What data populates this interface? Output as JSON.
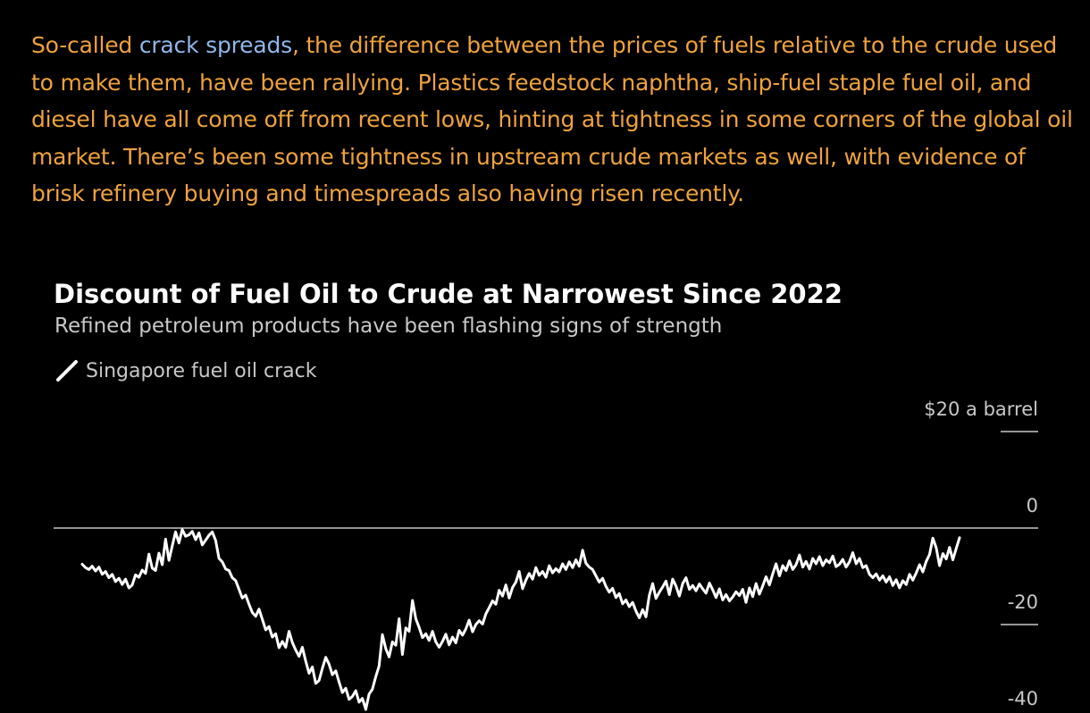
{
  "article": {
    "text_before_link": "So-called ",
    "link_text": "crack spreads",
    "text_after_link": ", the difference between the prices of fuels relative to the crude used to make them, have been rallying. Plastics feedstock naphtha, ship-fuel staple fuel oil, and diesel have all come off from recent lows, hinting at tightness in some corners of the global oil market. There’s been some tightness in upstream crude markets as well, with evidence of brisk refinery buying and timespreads also having risen recently.",
    "text_color": "#f0a23a",
    "link_color": "#8fb8ea"
  },
  "chart_data": {
    "type": "line",
    "title": "Discount of Fuel Oil to Crude at Narrowest Since 2022",
    "subtitle": "Refined petroleum products have been flashing signs of strength",
    "series": [
      {
        "name": "Singapore fuel oil crack",
        "color": "#ffffff",
        "values": [
          -7.5,
          -8.2,
          -8.6,
          -7.9,
          -8.9,
          -8.1,
          -9.6,
          -9.0,
          -10.3,
          -9.6,
          -11.1,
          -10.4,
          -11.7,
          -10.6,
          -12.4,
          -11.8,
          -9.7,
          -10.2,
          -8.7,
          -9.4,
          -5.4,
          -8.3,
          -8.8,
          -5.2,
          -7.6,
          -2.3,
          -6.7,
          -3.7,
          -0.8,
          -3.1,
          -0.3,
          -1.7,
          -1.4,
          -0.7,
          -2.4,
          -1.0,
          -3.5,
          -2.5,
          -1.5,
          -0.8,
          -2.6,
          -6.3,
          -7.0,
          -8.5,
          -8.8,
          -10.3,
          -10.9,
          -12.7,
          -14.5,
          -13.9,
          -15.8,
          -17.5,
          -18.3,
          -16.8,
          -18.9,
          -21.1,
          -20.4,
          -22.6,
          -21.9,
          -24.8,
          -23.5,
          -24.7,
          -21.4,
          -23.7,
          -25.3,
          -26.6,
          -24.7,
          -27.6,
          -30.1,
          -28.8,
          -32.2,
          -31.6,
          -29.1,
          -26.8,
          -28.2,
          -30.4,
          -29.6,
          -31.9,
          -34.1,
          -33.2,
          -35.5,
          -34.9,
          -33.7,
          -36.1,
          -35.3,
          -37.6,
          -34.4,
          -33.4,
          -30.8,
          -28.6,
          -22.1,
          -25.0,
          -26.7,
          -23.6,
          -24.3,
          -18.8,
          -26.2,
          -20.7,
          -21.4,
          -15.0,
          -18.8,
          -20.6,
          -22.7,
          -21.9,
          -23.3,
          -21.4,
          -23.6,
          -24.7,
          -23.5,
          -22.0,
          -24.2,
          -22.6,
          -23.8,
          -21.2,
          -22.2,
          -20.9,
          -19.1,
          -21.5,
          -20.0,
          -19.2,
          -19.9,
          -17.8,
          -16.5,
          -15.1,
          -15.8,
          -12.9,
          -14.1,
          -11.8,
          -14.5,
          -12.3,
          -11.2,
          -9.0,
          -12.6,
          -10.8,
          -9.4,
          -10.6,
          -8.2,
          -9.8,
          -9.0,
          -10.2,
          -7.8,
          -9.3,
          -8.4,
          -9.1,
          -7.4,
          -8.6,
          -7.0,
          -8.2,
          -6.6,
          -7.9,
          -4.6,
          -7.3,
          -8.1,
          -8.6,
          -9.9,
          -11.2,
          -10.4,
          -12.1,
          -13.3,
          -12.5,
          -14.4,
          -13.6,
          -15.7,
          -14.9,
          -16.3,
          -15.4,
          -17.2,
          -18.6,
          -16.9,
          -18.4,
          -13.9,
          -11.5,
          -14.6,
          -13.3,
          -12.2,
          -11.0,
          -13.8,
          -10.6,
          -12.0,
          -14.1,
          -11.5,
          -10.3,
          -12.7,
          -11.9,
          -13.0,
          -11.6,
          -12.6,
          -13.5,
          -11.4,
          -12.8,
          -14.4,
          -12.6,
          -14.9,
          -13.8,
          -15.1,
          -14.3,
          -13.2,
          -14.0,
          -12.7,
          -15.4,
          -12.4,
          -14.2,
          -11.5,
          -13.7,
          -12.0,
          -10.1,
          -11.8,
          -9.5,
          -7.4,
          -9.9,
          -7.8,
          -8.8,
          -6.8,
          -8.6,
          -7.6,
          -5.6,
          -8.1,
          -6.9,
          -8.5,
          -6.3,
          -7.4,
          -5.9,
          -7.8,
          -6.6,
          -7.2,
          -5.8,
          -8.0,
          -7.5,
          -6.5,
          -8.1,
          -7.0,
          -5.1,
          -7.4,
          -6.3,
          -8.2,
          -7.8,
          -9.6,
          -10.3,
          -9.5,
          -10.8,
          -9.9,
          -11.2,
          -10.1,
          -11.9,
          -10.7,
          -12.4,
          -10.9,
          -11.7,
          -9.6,
          -10.8,
          -9.3,
          -7.6,
          -9.1,
          -6.9,
          -5.5,
          -2.1,
          -4.1,
          -7.8,
          -5.3,
          -6.4,
          -4.0,
          -6.6,
          -4.2,
          -2.0
        ]
      }
    ],
    "y_unit_label": "$20 a barrel",
    "yticks": [
      20,
      0,
      -20,
      -40
    ],
    "ytick_labels": [
      "",
      "0",
      "-20",
      "-40"
    ],
    "ylim": [
      -40,
      20
    ],
    "grid": false,
    "zero_line": true,
    "legend_position": "top-left",
    "axis_text_color": "#c8c8c8",
    "zero_line_color": "#c8c8c8"
  }
}
